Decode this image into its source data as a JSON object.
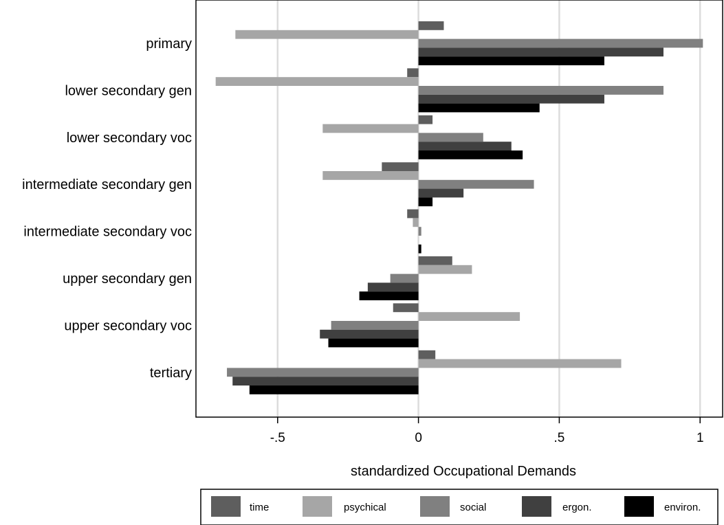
{
  "chart_data": {
    "type": "bar",
    "orientation": "horizontal",
    "categories": [
      "primary",
      "lower secondary gen",
      "lower secondary voc",
      "intermediate secondary gen",
      "intermediate secondary voc",
      "upper secondary gen",
      "upper secondary voc",
      "tertiary"
    ],
    "series": [
      {
        "name": "time",
        "color": "#5e5e5e",
        "values": [
          0.09,
          -0.04,
          0.05,
          -0.13,
          -0.04,
          0.12,
          -0.09,
          0.06
        ]
      },
      {
        "name": "psychical",
        "color": "#a6a6a6",
        "values": [
          -0.65,
          -0.72,
          -0.34,
          -0.34,
          -0.02,
          0.19,
          0.36,
          0.72
        ]
      },
      {
        "name": "social",
        "color": "#808080",
        "values": [
          1.01,
          0.87,
          0.23,
          0.41,
          0.01,
          -0.1,
          -0.31,
          -0.68
        ]
      },
      {
        "name": "ergon.",
        "color": "#404040",
        "values": [
          0.87,
          0.66,
          0.33,
          0.16,
          0.0,
          -0.18,
          -0.35,
          -0.66
        ]
      },
      {
        "name": "environ.",
        "color": "#000000",
        "values": [
          0.66,
          0.43,
          0.37,
          0.05,
          0.01,
          -0.21,
          -0.32,
          -0.6
        ]
      }
    ],
    "xlabel": "standardized Occupational Demands",
    "ylabel": "",
    "xlim": [
      -0.79,
      1.08
    ],
    "xticks": [
      -0.5,
      0,
      0.5,
      1
    ],
    "xtick_labels": [
      "-.5",
      "0",
      ".5",
      "1"
    ],
    "grid": "vertical",
    "legend_position": "bottom"
  }
}
